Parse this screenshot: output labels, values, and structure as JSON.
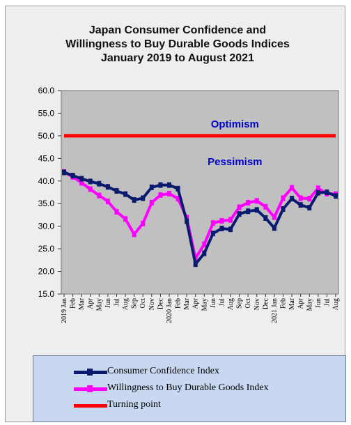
{
  "chart_data": {
    "type": "line",
    "title_lines": [
      "Japan Consumer Confidence and",
      "Willingness to Buy Durable Goods Indices",
      "January 2019 to August 2021"
    ],
    "ylim": [
      15,
      60
    ],
    "yticks": [
      "15.0",
      "20.0",
      "25.0",
      "30.0",
      "35.0",
      "40.0",
      "45.0",
      "50.0",
      "55.0",
      "60.0"
    ],
    "categories": [
      "2019 Jan",
      "Feb",
      "Mar",
      "Apr",
      "May",
      "Jun",
      "Jul",
      "Aug",
      "Sep",
      "Oct",
      "Nov",
      "Dec",
      "2020 Jan",
      "Feb",
      "Mar",
      "Apr",
      "May",
      "Jun",
      "Jul",
      "Aug",
      "Sep",
      "Oct",
      "Nov",
      "Dec",
      "2021 Jan",
      "Feb",
      "Mar",
      "Apr",
      "May",
      "Jun",
      "Jul",
      "Aug"
    ],
    "series": [
      {
        "name": "Consumer Confidence Index",
        "color": "#0a1a6e",
        "values": [
          41.9,
          41.2,
          40.5,
          39.9,
          39.4,
          38.7,
          37.8,
          37.1,
          35.8,
          36.2,
          38.6,
          39.1,
          39.1,
          38.3,
          31.1,
          21.6,
          24.0,
          28.4,
          29.5,
          29.3,
          32.7,
          33.3,
          33.6,
          31.8,
          29.6,
          33.8,
          36.1,
          34.7,
          34.1,
          37.4,
          37.5,
          36.7
        ]
      },
      {
        "name": "Willingness to Buy Durable Goods Index",
        "color": "#ff00ff",
        "values": [
          42.0,
          40.9,
          39.6,
          38.2,
          36.8,
          35.5,
          33.2,
          31.6,
          28.2,
          30.6,
          35.2,
          36.9,
          37.2,
          36.1,
          31.9,
          22.9,
          26.0,
          30.7,
          31.2,
          31.4,
          34.2,
          35.2,
          35.6,
          34.3,
          32.0,
          36.2,
          38.5,
          36.2,
          36.1,
          38.4,
          37.2,
          37.1
        ]
      },
      {
        "name": "Turning point",
        "color": "#ff0000",
        "values": [
          50,
          50,
          50,
          50,
          50,
          50,
          50,
          50,
          50,
          50,
          50,
          50,
          50,
          50,
          50,
          50,
          50,
          50,
          50,
          50,
          50,
          50,
          50,
          50,
          50,
          50,
          50,
          50,
          50,
          50,
          50,
          50
        ]
      }
    ],
    "annotations": [
      {
        "text": "Optimism",
        "x": 19.5,
        "y": 51.8
      },
      {
        "text": "Pessimism",
        "x": 19.5,
        "y": 43.5
      }
    ],
    "legend_position": "bottom"
  },
  "colors": {
    "plot_bg": "#c0c0c0",
    "annotation": "#0000cc"
  }
}
